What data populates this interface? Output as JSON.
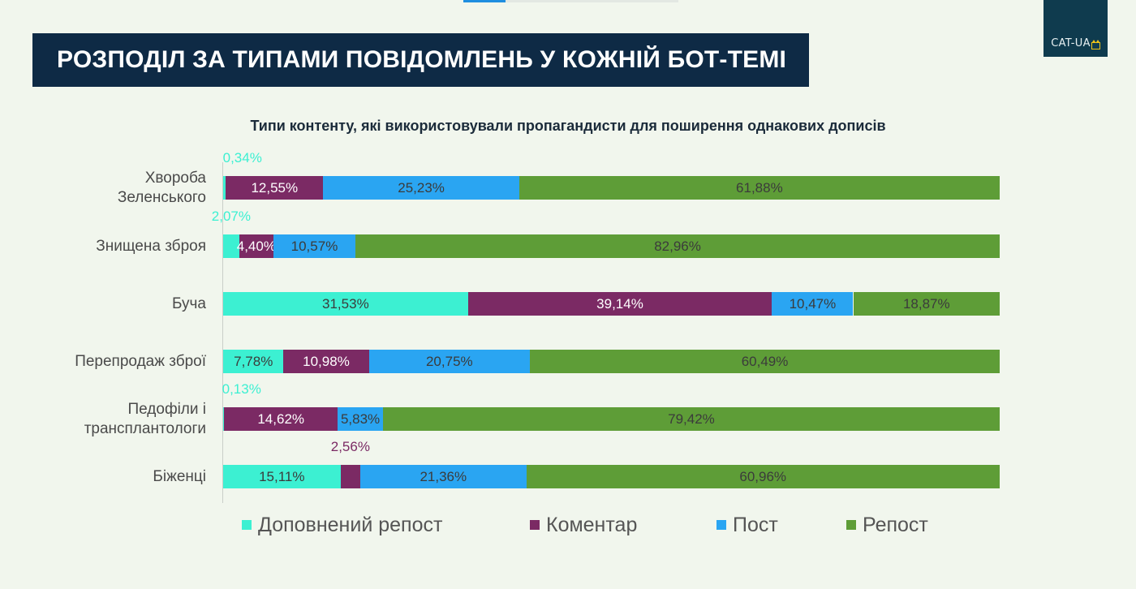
{
  "header": {
    "title": "РОЗПОДІЛ ЗА ТИПАМИ ПОВІДОМЛЕНЬ У КОЖНІЙ БОТ-ТЕМІ",
    "logo_text": "CAT-UA"
  },
  "chart_data": {
    "type": "bar",
    "orientation": "horizontal",
    "stacked": true,
    "title": "Типи контенту, які використовували пропагандисти для поширення однакових дописів",
    "xlabel": "",
    "ylabel": "",
    "xlim": [
      0,
      100
    ],
    "grid": false,
    "legend_position": "bottom",
    "categories": [
      [
        "Хвороба",
        "Зеленського"
      ],
      [
        "Знищена зброя"
      ],
      [
        "Буча"
      ],
      [
        "Перепродаж зброї"
      ],
      [
        "Педофіли і",
        "трансплантологи"
      ],
      [
        "Біженці"
      ]
    ],
    "series": [
      {
        "name": "Доповнений репост",
        "color": "#3cf0d2",
        "values": [
          0.34,
          2.07,
          31.53,
          7.78,
          0.13,
          15.11
        ],
        "labels": [
          "0,34%",
          "2,07%",
          "31,53%",
          "7,78%",
          "0,13%",
          "15,11%"
        ]
      },
      {
        "name": "Коментар",
        "color": "#7b2a64",
        "values": [
          12.55,
          4.4,
          39.14,
          10.98,
          14.62,
          2.56
        ],
        "labels": [
          "12,55%",
          "4,40%",
          "39,14%",
          "10,98%",
          "14,62%",
          "2,56%"
        ]
      },
      {
        "name": "Пост",
        "color": "#2aa5f2",
        "values": [
          25.23,
          10.57,
          10.47,
          20.75,
          5.83,
          21.36
        ],
        "labels": [
          "25,23%",
          "10,57%",
          "10,47%",
          "20,75%",
          "5,83%",
          "21,36%"
        ]
      },
      {
        "name": "Репост",
        "color": "#5e9d37",
        "values": [
          61.88,
          82.96,
          18.87,
          60.49,
          79.42,
          60.96
        ],
        "labels": [
          "61,88%",
          "82,96%",
          "18,87%",
          "60,49%",
          "79,42%",
          "60,96%"
        ]
      }
    ]
  }
}
